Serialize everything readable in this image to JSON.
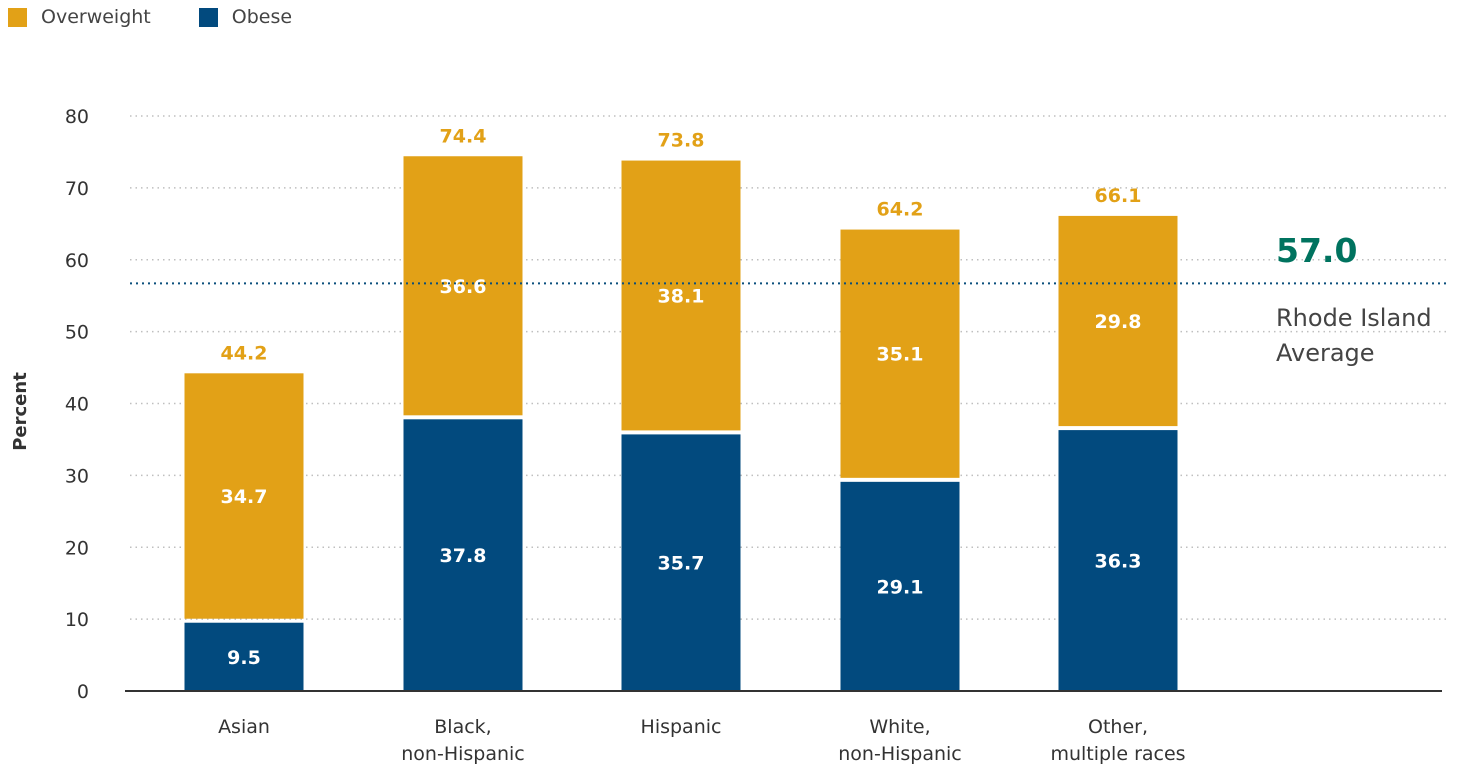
{
  "colors": {
    "overweight": "#E2A117",
    "obese": "#024A7E",
    "average": "#00735F",
    "average_line": "#0B4F7C",
    "grid": "#BFBFBF",
    "axis": "#333333"
  },
  "legend": [
    {
      "label": "Overweight",
      "color": "#E2A117"
    },
    {
      "label": "Obese",
      "color": "#024A7E"
    }
  ],
  "chart_data": {
    "type": "bar",
    "stacked": true,
    "categories": [
      [
        "Asian"
      ],
      [
        "Black,",
        "non-Hispanic"
      ],
      [
        "Hispanic"
      ],
      [
        "White,",
        "non-Hispanic"
      ],
      [
        "Other,",
        "multiple races"
      ]
    ],
    "series": [
      {
        "name": "Obese",
        "values": [
          9.5,
          37.8,
          35.7,
          29.1,
          36.3
        ]
      },
      {
        "name": "Overweight",
        "values": [
          34.7,
          36.6,
          38.1,
          35.1,
          29.8
        ]
      }
    ],
    "totals": [
      "44.2",
      "74.4",
      "73.8",
      "64.2",
      "66.1"
    ],
    "obese_labels": [
      "9.5",
      "37.8",
      "35.7",
      "29.1",
      "36.3"
    ],
    "overweight_labels": [
      "34.7",
      "36.6",
      "38.1",
      "35.1",
      "29.8"
    ],
    "ylabel": "Percent",
    "xlabel": "",
    "ylim": [
      0,
      80
    ],
    "yticks": [
      0,
      10,
      20,
      30,
      40,
      50,
      60,
      70,
      80
    ],
    "grid": true,
    "grid_style": "dotted",
    "legend_position": "top-left",
    "reference_line": {
      "value": 57.0,
      "value_label": "57.0",
      "label_lines": [
        "Rhode Island",
        "Average"
      ]
    }
  }
}
